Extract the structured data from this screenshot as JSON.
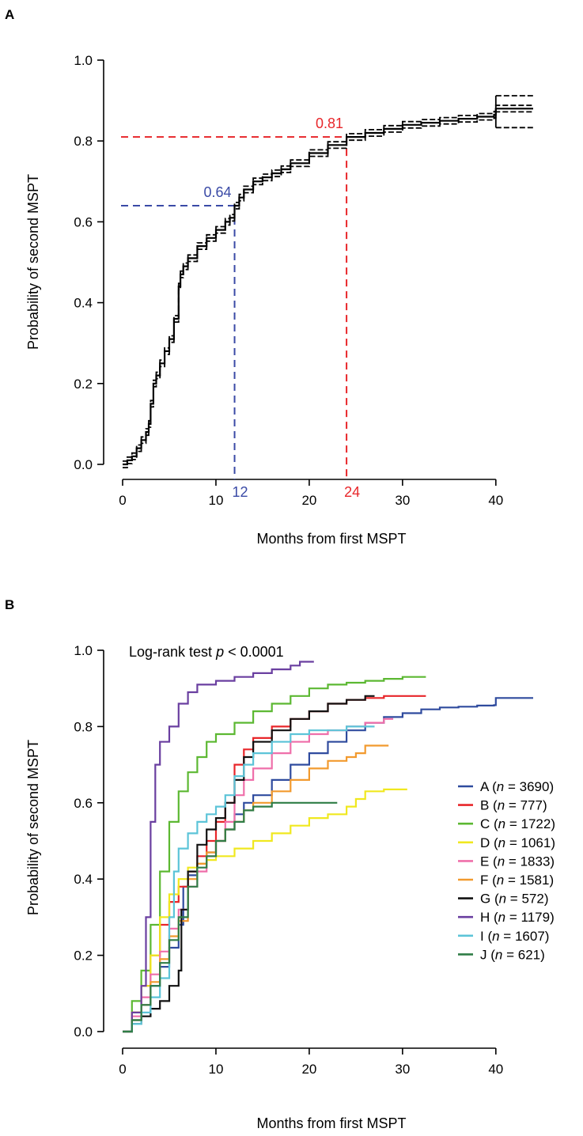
{
  "chart_data": [
    {
      "panel": "A",
      "type": "line",
      "xlabel": "Months from first MSPT",
      "ylabel": "Probability of second MSPT",
      "xlim": [
        0,
        44
      ],
      "ylim": [
        0,
        1.0
      ],
      "xticks": [
        0,
        10,
        20,
        30,
        40
      ],
      "yticks": [
        "0.0",
        "0.2",
        "0.4",
        "0.6",
        "0.8",
        "1.0"
      ],
      "grid": false,
      "series": [
        {
          "x": [
            0,
            0.5,
            1,
            1.5,
            2,
            2.5,
            2.8,
            3,
            3.3,
            3.6,
            4,
            4.5,
            5,
            5.5,
            6,
            6.2,
            6.5,
            7,
            8,
            9,
            10,
            11,
            11.5,
            12,
            12.5,
            13,
            14,
            15,
            16,
            17,
            18,
            20,
            22,
            24,
            26,
            28,
            30,
            32,
            34,
            36,
            38,
            39.8,
            40,
            44
          ],
          "y": [
            0,
            0.01,
            0.02,
            0.04,
            0.06,
            0.08,
            0.1,
            0.15,
            0.2,
            0.22,
            0.25,
            0.28,
            0.31,
            0.36,
            0.44,
            0.47,
            0.49,
            0.51,
            0.54,
            0.56,
            0.58,
            0.6,
            0.61,
            0.64,
            0.66,
            0.68,
            0.7,
            0.71,
            0.72,
            0.73,
            0.745,
            0.77,
            0.79,
            0.81,
            0.82,
            0.83,
            0.84,
            0.845,
            0.85,
            0.855,
            0.86,
            0.865,
            0.88,
            0.88
          ],
          "color": "#000000",
          "ci_width": 0.008
        }
      ],
      "reference_lines": [
        {
          "x": 12,
          "y": 0.64,
          "color": "#3a4aa6",
          "x_label": "12",
          "y_label": "0.64"
        },
        {
          "x": 24,
          "y": 0.81,
          "color": "#e8262a",
          "x_label": "24",
          "y_label": "0.81"
        }
      ]
    },
    {
      "panel": "B",
      "type": "line",
      "xlabel": "Months from first MSPT",
      "ylabel": "Probability of second MSPT",
      "annotation_prefix": "Log-rank test ",
      "annotation_italic": "p",
      "annotation_suffix": " < 0.0001",
      "xlim": [
        0,
        44
      ],
      "ylim": [
        0,
        1.0
      ],
      "xticks": [
        0,
        10,
        20,
        30,
        40
      ],
      "yticks": [
        "0.0",
        "0.2",
        "0.4",
        "0.6",
        "0.8",
        "1.0"
      ],
      "grid": false,
      "legend_position": "bottom-right",
      "series": [
        {
          "name": "A",
          "n": "3690",
          "color": "#2f4b9e",
          "x": [
            0,
            1,
            2,
            3,
            4,
            5,
            6,
            6.5,
            7,
            8,
            9,
            10,
            11,
            12,
            13,
            14,
            16,
            18,
            20,
            22,
            24,
            26,
            28,
            30,
            32,
            34,
            36,
            38,
            39.8,
            40,
            44
          ],
          "y": [
            0,
            0.03,
            0.07,
            0.12,
            0.17,
            0.22,
            0.28,
            0.38,
            0.41,
            0.44,
            0.47,
            0.5,
            0.53,
            0.57,
            0.6,
            0.62,
            0.66,
            0.7,
            0.73,
            0.76,
            0.79,
            0.81,
            0.825,
            0.835,
            0.845,
            0.85,
            0.852,
            0.855,
            0.856,
            0.875,
            0.875
          ]
        },
        {
          "name": "B",
          "n": "777",
          "color": "#e8262a",
          "x": [
            0,
            1,
            2,
            3,
            4,
            5,
            6,
            7,
            8,
            9,
            10,
            11,
            12,
            13,
            14,
            16,
            18,
            20,
            22,
            24,
            26,
            28,
            30,
            32.5
          ],
          "y": [
            0,
            0.05,
            0.12,
            0.2,
            0.28,
            0.34,
            0.38,
            0.42,
            0.46,
            0.5,
            0.55,
            0.6,
            0.7,
            0.74,
            0.77,
            0.8,
            0.82,
            0.84,
            0.86,
            0.87,
            0.875,
            0.88,
            0.88,
            0.88
          ]
        },
        {
          "name": "C",
          "n": "1722",
          "color": "#5cb832",
          "x": [
            0,
            1,
            2,
            3,
            4,
            5,
            6,
            7,
            8,
            9,
            10,
            12,
            14,
            16,
            18,
            20,
            22,
            24,
            26,
            28,
            30,
            32.5
          ],
          "y": [
            0,
            0.08,
            0.16,
            0.28,
            0.42,
            0.55,
            0.63,
            0.68,
            0.72,
            0.76,
            0.78,
            0.81,
            0.84,
            0.86,
            0.88,
            0.9,
            0.91,
            0.915,
            0.92,
            0.925,
            0.93,
            0.93
          ]
        },
        {
          "name": "D",
          "n": "1061",
          "color": "#f0e81f",
          "x": [
            0,
            1,
            2,
            3,
            4,
            5,
            6,
            7,
            8,
            9,
            10,
            12,
            14,
            16,
            18,
            20,
            22,
            24,
            25,
            26,
            28,
            30.5
          ],
          "y": [
            0,
            0.05,
            0.12,
            0.2,
            0.3,
            0.36,
            0.4,
            0.43,
            0.44,
            0.45,
            0.46,
            0.48,
            0.5,
            0.52,
            0.54,
            0.56,
            0.57,
            0.59,
            0.61,
            0.63,
            0.635,
            0.635
          ]
        },
        {
          "name": "E",
          "n": "1833",
          "color": "#ef6faa",
          "x": [
            0,
            1,
            2,
            3,
            4,
            5,
            6,
            7,
            8,
            9,
            10,
            11,
            12,
            13,
            14,
            16,
            18,
            20,
            22,
            24,
            26,
            28,
            29
          ],
          "y": [
            0,
            0.04,
            0.09,
            0.15,
            0.21,
            0.27,
            0.32,
            0.38,
            0.42,
            0.46,
            0.5,
            0.55,
            0.62,
            0.66,
            0.69,
            0.73,
            0.76,
            0.78,
            0.79,
            0.8,
            0.81,
            0.82,
            0.82
          ]
        },
        {
          "name": "F",
          "n": "1581",
          "color": "#f29a2e",
          "x": [
            0,
            1,
            2,
            3,
            4,
            5,
            6,
            7,
            8,
            9,
            10,
            11,
            12,
            13,
            14,
            16,
            18,
            20,
            22,
            24,
            25,
            26,
            28.5
          ],
          "y": [
            0,
            0.03,
            0.07,
            0.13,
            0.19,
            0.25,
            0.29,
            0.4,
            0.44,
            0.47,
            0.5,
            0.53,
            0.55,
            0.58,
            0.6,
            0.63,
            0.66,
            0.69,
            0.71,
            0.72,
            0.73,
            0.75,
            0.75
          ]
        },
        {
          "name": "G",
          "n": "572",
          "color": "#111111",
          "x": [
            0,
            1,
            2,
            3,
            4,
            5,
            6,
            6.3,
            7,
            8,
            9,
            10,
            11,
            12,
            13,
            14,
            16,
            18,
            20,
            22,
            24,
            26,
            27
          ],
          "y": [
            0,
            0.02,
            0.04,
            0.06,
            0.08,
            0.12,
            0.16,
            0.32,
            0.42,
            0.49,
            0.53,
            0.56,
            0.6,
            0.66,
            0.72,
            0.76,
            0.79,
            0.82,
            0.84,
            0.86,
            0.87,
            0.88,
            0.88
          ]
        },
        {
          "name": "H",
          "n": "1179",
          "color": "#6a3fa0",
          "x": [
            0,
            1,
            2,
            2.5,
            3,
            3.5,
            4,
            5,
            6,
            7,
            8,
            10,
            12,
            14,
            16,
            18,
            19,
            20.5
          ],
          "y": [
            0,
            0.05,
            0.12,
            0.3,
            0.55,
            0.7,
            0.76,
            0.8,
            0.86,
            0.89,
            0.91,
            0.92,
            0.93,
            0.94,
            0.95,
            0.96,
            0.97,
            0.97
          ]
        },
        {
          "name": "I",
          "n": "1607",
          "color": "#5cc4d8",
          "x": [
            0,
            1,
            2,
            3,
            4,
            5,
            5.5,
            6,
            7,
            8,
            9,
            10,
            11,
            12,
            13,
            14,
            16,
            18,
            20,
            22,
            24,
            26,
            27
          ],
          "y": [
            0,
            0.02,
            0.05,
            0.09,
            0.14,
            0.3,
            0.42,
            0.48,
            0.52,
            0.55,
            0.57,
            0.59,
            0.62,
            0.67,
            0.7,
            0.73,
            0.76,
            0.78,
            0.79,
            0.79,
            0.8,
            0.8,
            0.8
          ]
        },
        {
          "name": "J",
          "n": "621",
          "color": "#2f7d46",
          "x": [
            0,
            1,
            2,
            3,
            4,
            5,
            6,
            7,
            8,
            9,
            10,
            11,
            12,
            13,
            14,
            15,
            16,
            18,
            20,
            23
          ],
          "y": [
            0,
            0.03,
            0.07,
            0.12,
            0.18,
            0.24,
            0.3,
            0.38,
            0.43,
            0.46,
            0.5,
            0.53,
            0.55,
            0.58,
            0.59,
            0.59,
            0.6,
            0.6,
            0.6,
            0.6
          ]
        }
      ]
    }
  ]
}
